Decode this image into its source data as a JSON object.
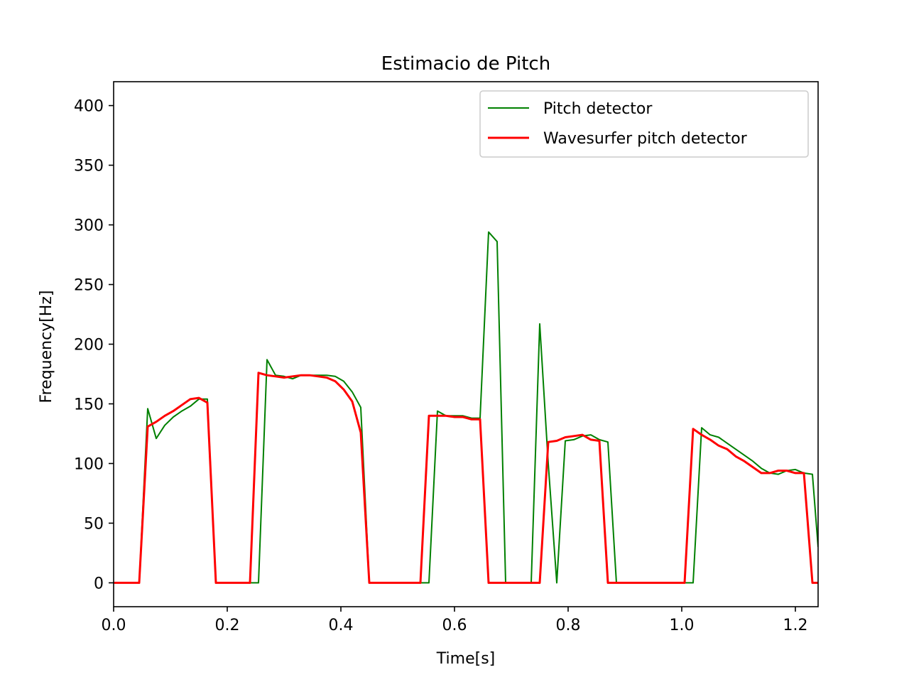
{
  "chart_data": {
    "type": "line",
    "title": "Estimacio de Pitch",
    "xlabel": "Time[s]",
    "ylabel": "Frequency[Hz]",
    "xlim": [
      0.0,
      1.24
    ],
    "ylim": [
      -20,
      420
    ],
    "xticks": [
      0.0,
      0.2,
      0.4,
      0.6,
      0.8,
      1.0,
      1.2
    ],
    "xtick_labels": [
      "0.0",
      "0.2",
      "0.4",
      "0.6",
      "0.8",
      "1.0",
      "1.2"
    ],
    "yticks": [
      0,
      50,
      100,
      150,
      200,
      250,
      300,
      350,
      400
    ],
    "ytick_labels": [
      "0",
      "50",
      "100",
      "150",
      "200",
      "250",
      "300",
      "350",
      "400"
    ],
    "grid": false,
    "legend_position": "top-right",
    "series": [
      {
        "name": "Pitch detector",
        "color": "#008000",
        "x": [
          0.0,
          0.045,
          0.06,
          0.075,
          0.09,
          0.105,
          0.12,
          0.135,
          0.15,
          0.165,
          0.18,
          0.195,
          0.21,
          0.225,
          0.24,
          0.255,
          0.27,
          0.285,
          0.3,
          0.315,
          0.33,
          0.345,
          0.36,
          0.375,
          0.39,
          0.405,
          0.42,
          0.435,
          0.45,
          0.465,
          0.48,
          0.495,
          0.51,
          0.525,
          0.54,
          0.555,
          0.57,
          0.585,
          0.6,
          0.615,
          0.63,
          0.645,
          0.66,
          0.675,
          0.69,
          0.705,
          0.72,
          0.735,
          0.75,
          0.765,
          0.78,
          0.795,
          0.81,
          0.825,
          0.84,
          0.855,
          0.87,
          0.885,
          0.9,
          0.915,
          0.93,
          0.945,
          0.96,
          0.975,
          0.99,
          1.005,
          1.02,
          1.035,
          1.05,
          1.065,
          1.08,
          1.095,
          1.11,
          1.125,
          1.14,
          1.155,
          1.17,
          1.185,
          1.2,
          1.215,
          1.23,
          1.24
        ],
        "y": [
          0,
          0,
          146,
          121,
          132,
          139,
          144,
          148,
          154,
          154,
          0,
          0,
          0,
          0,
          0,
          0,
          187,
          174,
          173,
          171,
          174,
          174,
          174,
          174,
          173,
          169,
          160,
          147,
          0,
          0,
          0,
          0,
          0,
          0,
          0,
          0,
          144,
          140,
          140,
          140,
          138,
          138,
          294,
          286,
          0,
          0,
          0,
          0,
          217,
          100,
          0,
          119,
          120,
          123,
          124,
          120,
          118,
          0,
          0,
          0,
          0,
          0,
          0,
          0,
          0,
          0,
          0,
          130,
          124,
          122,
          117,
          112,
          107,
          102,
          96,
          92,
          91,
          94,
          95,
          92,
          91,
          30
        ]
      },
      {
        "name": "Wavesurfer pitch detector",
        "color": "#ff0000",
        "x": [
          0.0,
          0.045,
          0.06,
          0.075,
          0.09,
          0.105,
          0.12,
          0.135,
          0.15,
          0.165,
          0.18,
          0.195,
          0.21,
          0.225,
          0.24,
          0.255,
          0.27,
          0.285,
          0.3,
          0.315,
          0.33,
          0.345,
          0.36,
          0.375,
          0.39,
          0.405,
          0.42,
          0.435,
          0.45,
          0.465,
          0.48,
          0.495,
          0.51,
          0.525,
          0.54,
          0.555,
          0.57,
          0.585,
          0.6,
          0.615,
          0.63,
          0.645,
          0.66,
          0.675,
          0.69,
          0.705,
          0.72,
          0.735,
          0.75,
          0.765,
          0.78,
          0.795,
          0.81,
          0.825,
          0.84,
          0.855,
          0.87,
          0.885,
          0.9,
          0.915,
          0.93,
          0.945,
          0.96,
          0.975,
          0.99,
          1.005,
          1.02,
          1.035,
          1.05,
          1.065,
          1.08,
          1.095,
          1.11,
          1.125,
          1.14,
          1.155,
          1.17,
          1.185,
          1.2,
          1.215,
          1.23,
          1.24
        ],
        "y": [
          0,
          0,
          131,
          135,
          140,
          144,
          149,
          154,
          155,
          151,
          0,
          0,
          0,
          0,
          0,
          176,
          174,
          173,
          172,
          173,
          174,
          174,
          173,
          172,
          169,
          162,
          152,
          126,
          0,
          0,
          0,
          0,
          0,
          0,
          0,
          140,
          140,
          140,
          139,
          139,
          137,
          137,
          0,
          0,
          0,
          0,
          0,
          0,
          0,
          118,
          119,
          122,
          123,
          124,
          120,
          119,
          0,
          0,
          0,
          0,
          0,
          0,
          0,
          0,
          0,
          0,
          129,
          124,
          120,
          115,
          112,
          106,
          102,
          97,
          92,
          92,
          94,
          94,
          92,
          92,
          0,
          0
        ]
      }
    ]
  }
}
